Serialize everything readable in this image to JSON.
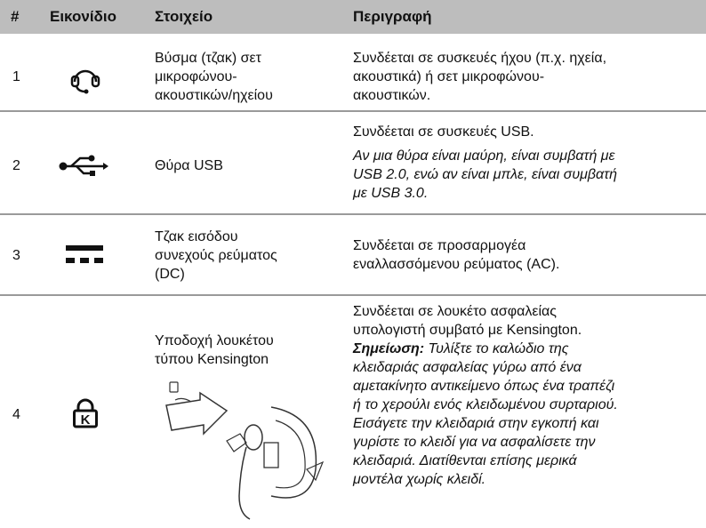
{
  "table": {
    "header": [
      "#",
      "Εικονίδιο",
      "Στοιχείο",
      "Περιγραφή"
    ],
    "rows": [
      {
        "number": "1",
        "item": [
          "Βύσμα (τζακ) σετ",
          "μικροφώνου-",
          "ακουστικών/ηχείου"
        ],
        "description": [
          "Συνδέεται σε συσκευές ήχου (π.χ. ηχεία,",
          "ακουστικά) ή σετ μικροφώνου-",
          "ακουστικών."
        ]
      },
      {
        "number": "2",
        "item": [
          "Θύρα USB"
        ],
        "description": [
          "Συνδέεται σε συσκευές USB."
        ],
        "note": [
          "Αν μια θύρα είναι μαύρη, είναι συμβατή με",
          "USB 2.0, ενώ αν είναι μπλε, είναι συμβατή",
          "με USB 3.0."
        ]
      },
      {
        "number": "3",
        "item": [
          "Τζακ εισόδου",
          "συνεχούς ρεύματος",
          "(DC)"
        ],
        "description": [
          "Συνδέεται σε προσαρμογέα",
          "εναλλασσόμενου ρεύματος (AC)."
        ]
      },
      {
        "number": "4",
        "item": [
          "Υποδοχή λουκέτου",
          "τύπου Kensington"
        ],
        "description": [
          "Συνδέεται σε λουκέτο ασφαλείας",
          "υπολογιστή συμβατό με Kensington."
        ],
        "note_label": "Σημείωση:",
        "note": [
          "Τυλίξτε το καλώδιο της",
          "κλειδαριάς ασφαλείας γύρω από ένα",
          "αμετακίνητο αντικείμενο όπως ένα τραπέζι",
          "ή το χερούλι ενός κλειδωμένου συρταριού.",
          "Εισάγετε την κλειδαριά στην εγκοπή και",
          "γυρίστε το κλειδί για να ασφαλίσετε την",
          "κλειδαριά. Διατίθενται επίσης μερικά",
          "μοντέλα χωρίς κλειδί."
        ]
      }
    ]
  }
}
